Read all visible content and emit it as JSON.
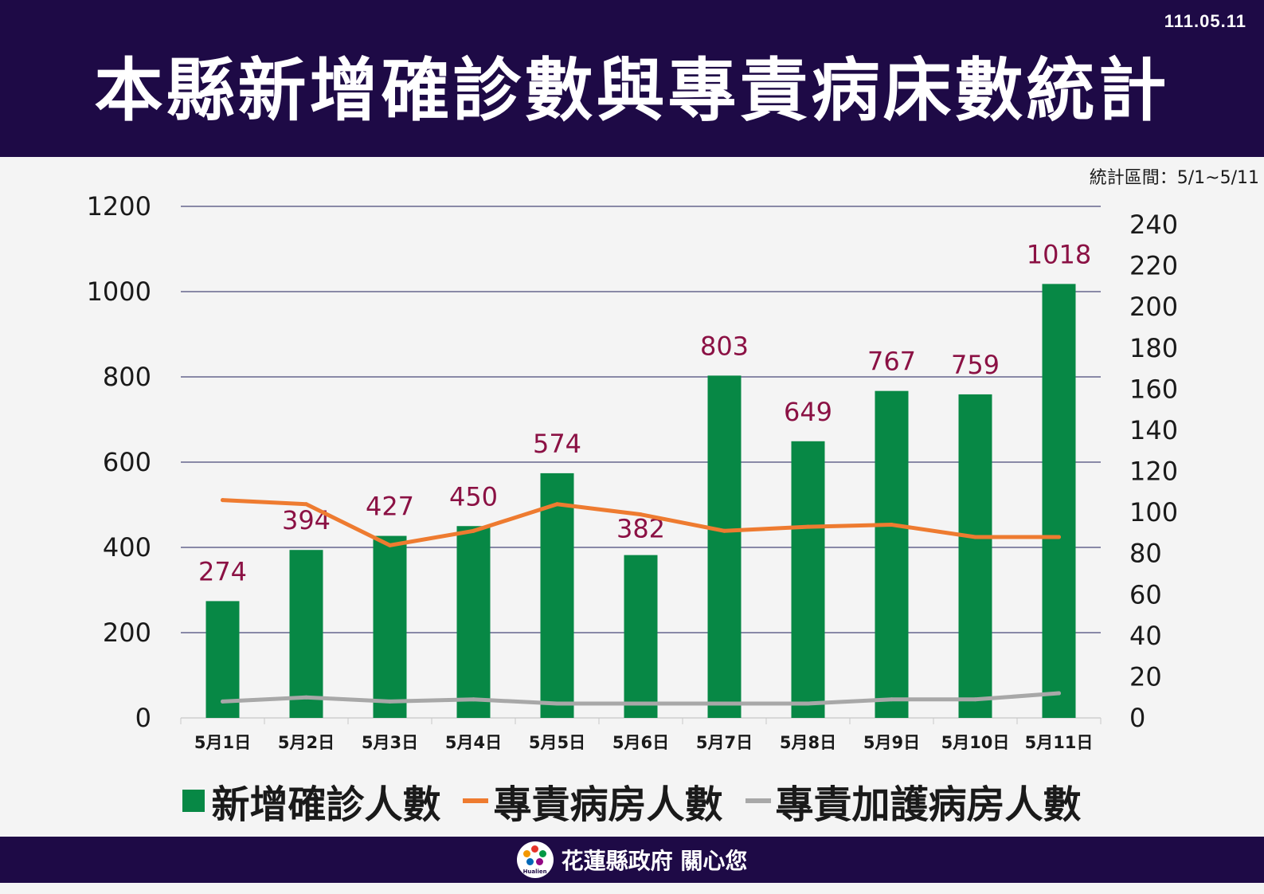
{
  "header": {
    "date": "111.05.11",
    "title": "本縣新增確診數與專責病床數統計"
  },
  "range_label": "統計區間：5/1~5/11",
  "colors": {
    "header_bg": "#1e0a46",
    "bar": "#078845",
    "line_ward": "#ee7b30",
    "line_icu": "#a8a8a8",
    "data_label": "#8b1144"
  },
  "chart_data": {
    "type": "bar",
    "categories": [
      "5月1日",
      "5月2日",
      "5月3日",
      "5月4日",
      "5月5日",
      "5月6日",
      "5月7日",
      "5月8日",
      "5月9日",
      "5月10日",
      "5月11日"
    ],
    "ylim": [
      0,
      1200
    ],
    "y_ticks": [
      0,
      200,
      400,
      600,
      800,
      1000,
      1200
    ],
    "y2lim": [
      0,
      240
    ],
    "y2_ticks": [
      0,
      20,
      40,
      60,
      80,
      100,
      120,
      140,
      160,
      180,
      200,
      220,
      240
    ],
    "grid": true,
    "legend_position": "bottom",
    "series": [
      {
        "name": "新增確診人數",
        "type": "bar",
        "axis": "left",
        "values": [
          274,
          394,
          427,
          450,
          574,
          382,
          803,
          649,
          767,
          759,
          1018
        ],
        "data_labels": [
          "274",
          "394",
          "427",
          "450",
          "574",
          "382",
          "803",
          "649",
          "767",
          "759",
          "1018"
        ]
      },
      {
        "name": "專責病房人數",
        "type": "line",
        "axis": "right",
        "values": [
          106,
          104,
          84,
          91,
          104,
          99,
          91,
          93,
          94,
          88,
          88
        ]
      },
      {
        "name": "專責加護病房人數",
        "type": "line",
        "axis": "right",
        "values": [
          8,
          10,
          8,
          9,
          7,
          7,
          7,
          7,
          9,
          9,
          12
        ]
      }
    ]
  },
  "legend": {
    "items": [
      "新增確診人數",
      "專責病房人數",
      "專責加護病房人數"
    ]
  },
  "footer": {
    "logo_text": "Hualien",
    "slogan": "花蓮縣政府 關心您"
  }
}
